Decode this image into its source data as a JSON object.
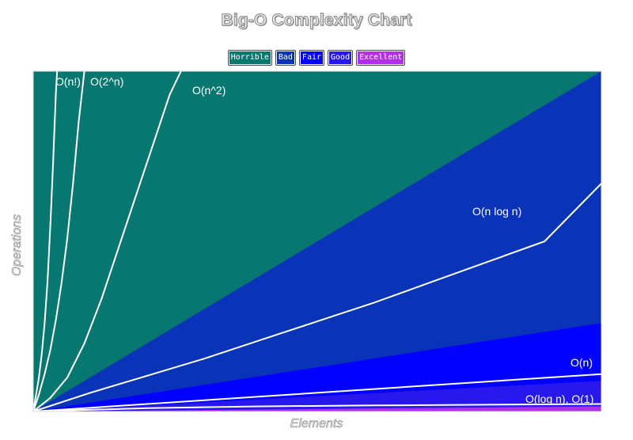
{
  "chart_data": {
    "type": "area",
    "title": "Big-O Complexity Chart",
    "xlabel": "Elements",
    "ylabel": "Operations",
    "xlim": [
      0,
      100
    ],
    "ylim": [
      0,
      100
    ],
    "legend_position": "top-center",
    "regions": [
      {
        "name": "Horrible",
        "color": "#077770",
        "boundary_top": 100
      },
      {
        "name": "Bad",
        "color": "#0934b8",
        "boundary_top": 100
      },
      {
        "name": "Fair",
        "color": "#0000ff",
        "boundary_top": 26
      },
      {
        "name": "Good",
        "color": "#2818ee",
        "boundary_top": 9
      },
      {
        "name": "Excellent",
        "color": "#b22fe8",
        "boundary_top": 1.5
      }
    ],
    "series": [
      {
        "name": "O(n!)",
        "x": [
          0,
          0.5,
          1,
          1.5,
          2,
          2.5,
          3,
          3.5,
          4,
          4.2
        ],
        "y": [
          0,
          5,
          10,
          17,
          26,
          38,
          54,
          73,
          94,
          100
        ]
      },
      {
        "name": "O(2^n)",
        "x": [
          0,
          1,
          2,
          3,
          4,
          5,
          6,
          7,
          8,
          9
        ],
        "y": [
          0,
          5,
          11,
          18,
          27,
          38,
          51,
          67,
          85,
          100
        ]
      },
      {
        "name": "O(n^2)",
        "x": [
          0,
          3,
          6,
          9,
          12,
          15,
          18,
          21,
          24,
          26
        ],
        "y": [
          0,
          4,
          10,
          20,
          33,
          48,
          63,
          78,
          93,
          100
        ]
      },
      {
        "name": "O(n log n)",
        "x": [
          0,
          10,
          20,
          30,
          40,
          50,
          60,
          70,
          80,
          90,
          100
        ],
        "y": [
          0,
          5.5,
          10.5,
          15.5,
          21,
          26.5,
          32,
          38,
          44,
          50,
          67
        ]
      },
      {
        "name": "O(n)",
        "x": [
          0,
          100
        ],
        "y": [
          0,
          11
        ]
      },
      {
        "name": "O(log n), O(1)",
        "x": [
          0,
          20,
          40,
          60,
          80,
          100
        ],
        "y": [
          0,
          1,
          1.5,
          1.8,
          2,
          2.2
        ]
      }
    ]
  },
  "legend": [
    "Horrible",
    "Bad",
    "Fair",
    "Good",
    "Excellent"
  ],
  "curve_labels": [
    "O(n!)",
    "O(2^n)",
    "O(n^2)",
    "O(n log n)",
    "O(n)",
    "O(log n), O(1)"
  ]
}
